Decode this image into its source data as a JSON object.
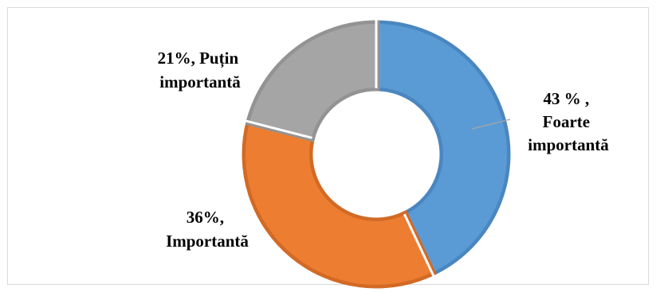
{
  "chart_data": {
    "type": "pie",
    "subtype": "doughnut",
    "title": "",
    "series": [
      {
        "categories": [
          "Foarte importantă",
          "Importantă",
          "Puțin importantă"
        ],
        "values": [
          43,
          36,
          21
        ],
        "colors": [
          "#5b9bd5",
          "#ed7d31",
          "#a5a5a5"
        ],
        "border_colors": [
          "#4a86c0",
          "#d26a25",
          "#939393"
        ]
      }
    ],
    "data_labels": [
      [
        "43 % ,",
        "Foarte",
        "importantă"
      ],
      [
        "36%,",
        "Importantă"
      ],
      [
        "21%, Puțin",
        "importantă"
      ]
    ],
    "legend": "none",
    "leader_line_color": "#a6a6a6"
  }
}
